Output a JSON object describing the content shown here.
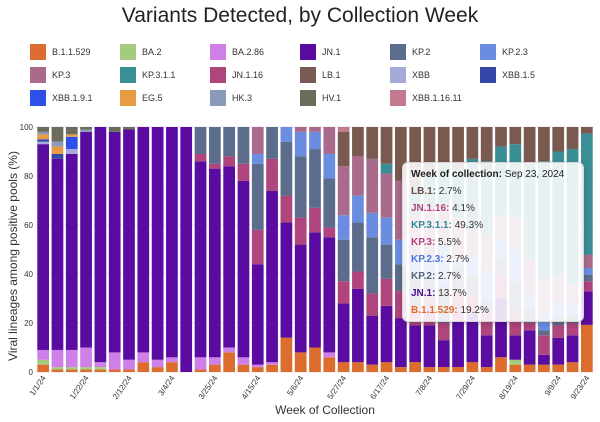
{
  "chart_data": {
    "type": "bar",
    "stacked": true,
    "title": "Variants Detected, by Collection Week",
    "xlabel": "Week of Collection",
    "ylabel": "Viral lineages among positive pools (%)",
    "ylim": [
      0,
      100
    ],
    "yticks": [
      0,
      20,
      40,
      60,
      80,
      100
    ],
    "xtick_labels": [
      "1/1/24",
      "1/22/24",
      "2/12/24",
      "3/4/24",
      "3/25/24",
      "4/15/24",
      "5/6/24",
      "5/27/24",
      "6/17/24",
      "7/8/24",
      "7/29/24",
      "8/19/24",
      "9/9/24",
      "9/23/24"
    ],
    "xtick_indices": [
      0,
      3,
      6,
      9,
      12,
      15,
      18,
      21,
      24,
      27,
      30,
      33,
      36,
      38
    ],
    "legend": [
      {
        "name": "B.1.1.529",
        "color": "#dd6d2e"
      },
      {
        "name": "BA.2",
        "color": "#a4cc7e"
      },
      {
        "name": "BA.2.86",
        "color": "#cf7fe8"
      },
      {
        "name": "JN.1",
        "color": "#5a0ca0"
      },
      {
        "name": "KP.2",
        "color": "#5c6c8c"
      },
      {
        "name": "KP.2.3",
        "color": "#6b8de0"
      },
      {
        "name": "KP.3",
        "color": "#aa6a8c"
      },
      {
        "name": "KP.3.1.1",
        "color": "#3a8e96"
      },
      {
        "name": "JN.1.16",
        "color": "#b0457e"
      },
      {
        "name": "LB.1",
        "color": "#7a5a50"
      },
      {
        "name": "XBB",
        "color": "#a6aad8"
      },
      {
        "name": "XBB.1.5",
        "color": "#3548a8"
      },
      {
        "name": "XBB.1.9.1",
        "color": "#2f50e8"
      },
      {
        "name": "EG.5",
        "color": "#e89a44"
      },
      {
        "name": "HK.3",
        "color": "#8a9ab8"
      },
      {
        "name": "HV.1",
        "color": "#6c6c5c"
      },
      {
        "name": "XBB.1.16.11",
        "color": "#c47a8e"
      }
    ],
    "stack_order": [
      "B.1.1.529",
      "BA.2",
      "BA.2.86",
      "JN.1",
      "JN.1.16",
      "KP.2",
      "KP.2.3",
      "KP.3",
      "KP.3.1.1",
      "LB.1",
      "XBB",
      "XBB.1.5",
      "XBB.1.9.1",
      "EG.5",
      "HK.3",
      "HV.1",
      "XBB.1.16.11"
    ],
    "weeks": [
      {
        "B.1.1.529": 3,
        "BA.2": 2,
        "BA.2.86": 4,
        "JN.1": 84,
        "XBB": 1,
        "XBB.1.5": 1,
        "EG.5": 2,
        "HK.3": 1,
        "HV.1": 2
      },
      {
        "B.1.1.529": 1,
        "BA.2": 1,
        "BA.2.86": 7,
        "JN.1": 78,
        "XBB.1.5": 2,
        "EG.5": 3,
        "HK.3": 2,
        "HV.1": 6
      },
      {
        "B.1.1.529": 1,
        "BA.2": 1,
        "BA.2.86": 7,
        "JN.1": 80,
        "XBB": 2,
        "XBB.1.9.1": 5,
        "EG.5": 1,
        "HV.1": 3
      },
      {
        "B.1.1.529": 1,
        "BA.2": 1,
        "BA.2.86": 8,
        "JN.1": 88,
        "HK.3": 1,
        "HV.1": 1
      },
      {
        "B.1.1.529": 1,
        "BA.2": 1,
        "BA.2.86": 2,
        "JN.1": 96
      },
      {
        "B.1.1.529": 1,
        "BA.2.86": 7,
        "JN.1": 90,
        "HV.1": 2
      },
      {
        "B.1.1.529": 1,
        "BA.2.86": 4,
        "JN.1": 94,
        "HV.1": 1
      },
      {
        "B.1.1.529": 4,
        "BA.2.86": 4,
        "JN.1": 92
      },
      {
        "B.1.1.529": 2,
        "BA.2.86": 3,
        "JN.1": 95
      },
      {
        "B.1.1.529": 4,
        "BA.2.86": 2,
        "JN.1": 94
      },
      {
        "B.1.1.529": 0,
        "BA.2.86": 0,
        "JN.1": 100
      },
      {
        "B.1.1.529": 1,
        "BA.2.86": 5,
        "JN.1": 80,
        "JN.1.16": 3,
        "KP.2": 11
      },
      {
        "B.1.1.529": 3,
        "BA.2.86": 3,
        "JN.1": 77,
        "JN.1.16": 2,
        "KP.2": 15
      },
      {
        "B.1.1.529": 8,
        "BA.2.86": 2,
        "JN.1": 74,
        "JN.1.16": 4,
        "KP.2": 12
      },
      {
        "B.1.1.529": 3,
        "BA.2.86": 3,
        "JN.1": 72,
        "JN.1.16": 7,
        "KP.2": 15
      },
      {
        "B.1.1.529": 2,
        "BA.2.86": 1,
        "JN.1": 41,
        "JN.1.16": 14,
        "KP.2": 27,
        "KP.3": 11,
        "KP.2.3": 4
      },
      {
        "B.1.1.529": 3,
        "BA.2.86": 1,
        "JN.1": 70,
        "JN.1.16": 13,
        "KP.2": 13
      },
      {
        "B.1.1.529": 14,
        "JN.1": 47,
        "JN.1.16": 11,
        "KP.2": 22,
        "KP.2.3": 6
      },
      {
        "B.1.1.529": 8,
        "JN.1": 44,
        "JN.1.16": 11,
        "KP.2": 25,
        "KP.2.3": 10,
        "KP.3": 2
      },
      {
        "B.1.1.529": 10,
        "JN.1": 47,
        "JN.1.16": 10,
        "KP.2": 24,
        "KP.2.3": 7,
        "KP.3": 2
      },
      {
        "B.1.1.529": 6,
        "BA.2.86": 2,
        "JN.1": 47,
        "JN.1.16": 4,
        "KP.2": 20,
        "KP.2.3": 10,
        "KP.3": 11
      },
      {
        "B.1.1.529": 4,
        "JN.1": 24,
        "JN.1.16": 9,
        "KP.2": 17,
        "KP.2.3": 10,
        "KP.3": 20,
        "XBB.1.16.11": 2,
        "LB.1": 14
      },
      {
        "B.1.1.529": 4,
        "JN.1": 30,
        "JN.1.16": 7,
        "KP.2": 20,
        "KP.2.3": 11,
        "KP.3": 16,
        "LB.1": 12
      },
      {
        "B.1.1.529": 3,
        "JN.1": 20,
        "JN.1.16": 9,
        "KP.2": 23,
        "KP.2.3": 10,
        "KP.3": 22,
        "LB.1": 13
      },
      {
        "B.1.1.529": 4,
        "JN.1": 23,
        "JN.1.16": 11,
        "KP.2": 14,
        "KP.2.3": 11,
        "KP.3": 18,
        "KP.3.1.1": 4,
        "LB.1": 15
      },
      {
        "B.1.1.529": 2,
        "JN.1": 20,
        "JN.1.16": 11,
        "KP.2": 11,
        "KP.2.3": 10,
        "KP.3": 24,
        "LB.1": 22
      },
      {
        "B.1.1.529": 4,
        "JN.1": 15,
        "JN.1.16": 8,
        "KP.2": 12,
        "KP.2.3": 8,
        "KP.3": 17,
        "KP.3.1.1": 12,
        "LB.1": 24
      },
      {
        "B.1.1.529": 2,
        "JN.1": 17,
        "JN.1.16": 12,
        "KP.2": 8,
        "KP.2.3": 9,
        "KP.3": 19,
        "KP.3.1.1": 13,
        "LB.1": 20
      },
      {
        "B.1.1.529": 2,
        "JN.1": 11,
        "JN.1.16": 7,
        "KP.2": 15,
        "KP.2.3": 17,
        "KP.3": 16,
        "KP.3.1.1": 17,
        "LB.1": 15
      },
      {
        "B.1.1.529": 2,
        "JN.1": 19,
        "JN.1.16": 12,
        "KP.2": 10,
        "KP.2.3": 3,
        "KP.3": 17,
        "KP.3.1.1": 20,
        "LB.1": 17
      },
      {
        "B.1.1.529": 4,
        "JN.1": 20,
        "JN.1.16": 7,
        "KP.2": 8,
        "KP.2.3": 8,
        "KP.3": 11,
        "KP.3.1.1": 29,
        "LB.1": 13
      },
      {
        "B.1.1.529": 2,
        "JN.1": 13,
        "JN.1.16": 9,
        "KP.2": 5,
        "KP.2.3": 12,
        "KP.3": 15,
        "KP.3.1.1": 30,
        "LB.1": 14
      },
      {
        "B.1.1.529": 6,
        "JN.1": 24,
        "JN.1.16": 10,
        "KP.2": 6,
        "KP.2.3": 8,
        "KP.3": 10,
        "KP.3.1.1": 28,
        "LB.1": 8
      },
      {
        "B.1.1.529": 3,
        "BA.2": 2,
        "JN.1": 10,
        "JN.1.16": 10,
        "KP.2": 12,
        "KP.2.3": 13,
        "KP.3": 13,
        "KP.3.1.1": 30,
        "LB.1": 7
      },
      {
        "B.1.1.529": 3,
        "JN.1": 14,
        "JN.1.16": 3,
        "KP.2": 6,
        "KP.2.3": 6,
        "KP.3": 14,
        "KP.3.1.1": 39,
        "LB.1": 15
      },
      {
        "B.1.1.529": 3,
        "JN.1": 4,
        "JN.1.16": 8,
        "KP.2": 2,
        "KP.2.3": 7,
        "KP.3": 14,
        "KP.3.1.1": 48,
        "LB.1": 14
      },
      {
        "B.1.1.529": 3,
        "JN.1": 11,
        "JN.1.16": 5,
        "KP.2": 4,
        "KP.2.3": 6,
        "KP.3": 10,
        "KP.3.1.1": 51,
        "LB.1": 10
      },
      {
        "B.1.1.529": 4,
        "JN.1": 11,
        "JN.1.16": 5,
        "KP.2": 3,
        "KP.2.3": 5,
        "KP.3": 8,
        "KP.3.1.1": 55,
        "LB.1": 9
      },
      {
        "B.1.1.529": 19.2,
        "JN.1": 13.7,
        "JN.1.16": 4.1,
        "KP.2": 2.7,
        "KP.2.3": 2.7,
        "KP.3": 5.5,
        "KP.3.1.1": 49.3,
        "LB.1": 2.7
      }
    ]
  },
  "tooltip": {
    "header_label": "Week of collection:",
    "header_value": "Sep 23, 2024",
    "rows": [
      {
        "name": "LB.1:",
        "value": "2.7%",
        "color": "#6d4c44"
      },
      {
        "name": "JN.1.16:",
        "value": "4.1%",
        "color": "#b0457e"
      },
      {
        "name": "KP.3.1.1:",
        "value": "49.3%",
        "color": "#2e8a92"
      },
      {
        "name": "KP.3:",
        "value": "5.5%",
        "color": "#b0457e"
      },
      {
        "name": "KP.2.3:",
        "value": "2.7%",
        "color": "#4f74d6"
      },
      {
        "name": "KP.2:",
        "value": "2.7%",
        "color": "#56647e"
      },
      {
        "name": "JN.1:",
        "value": "13.7%",
        "color": "#4f0c94"
      },
      {
        "name": "B.1.1.529:",
        "value": "19.2%",
        "color": "#dd6d2e"
      }
    ]
  }
}
